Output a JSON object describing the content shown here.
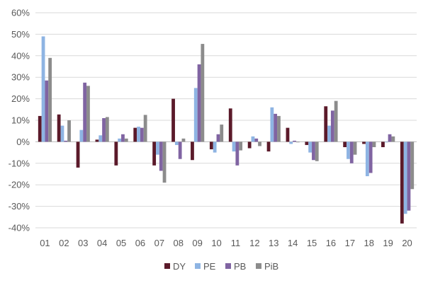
{
  "chart_data": {
    "type": "bar",
    "title": "",
    "xlabel": "",
    "ylabel": "",
    "ylim": [
      -40,
      60
    ],
    "y_ticks": [
      "60%",
      "50%",
      "40%",
      "30%",
      "20%",
      "10%",
      "0%",
      "-10%",
      "-20%",
      "-30%",
      "-40%"
    ],
    "grid": true,
    "legend_position": "bottom",
    "categories": [
      "01",
      "02",
      "03",
      "04",
      "05",
      "06",
      "07",
      "08",
      "09",
      "10",
      "11",
      "12",
      "13",
      "14",
      "15",
      "16",
      "17",
      "18",
      "19",
      "20"
    ],
    "series": [
      {
        "name": "DY",
        "color": "#5b1a2a",
        "values": [
          12,
          12.7,
          -12,
          1,
          -11,
          6.5,
          -11,
          20,
          -8.5,
          -3.5,
          15.5,
          -3,
          -4.5,
          6.5,
          -1.5,
          16.5,
          -2.5,
          -1,
          -2.5,
          -38
        ]
      },
      {
        "name": "PE",
        "color": "#8eb4e3",
        "values": [
          49,
          7.5,
          5.5,
          3,
          1.5,
          7,
          -6,
          -1.5,
          25,
          -5,
          -4.5,
          2.5,
          16,
          -1,
          -5,
          7.5,
          -8,
          -16,
          0,
          -33.5
        ]
      },
      {
        "name": "PB",
        "color": "#8064a2",
        "values": [
          28.5,
          0.5,
          27.5,
          11,
          3.5,
          6.5,
          -13.5,
          -8,
          36,
          3.5,
          -11,
          1.5,
          13,
          0.5,
          -8.5,
          14.5,
          -10,
          -14.5,
          3.5,
          -32
        ]
      },
      {
        "name": "PiB",
        "color": "#8c8c8c",
        "values": [
          39,
          10,
          26,
          11.5,
          1.5,
          12.5,
          -19,
          1.5,
          45.5,
          8,
          -4,
          -2,
          12,
          0,
          -9,
          19,
          -6,
          -2.5,
          2.5,
          -22
        ]
      }
    ]
  }
}
